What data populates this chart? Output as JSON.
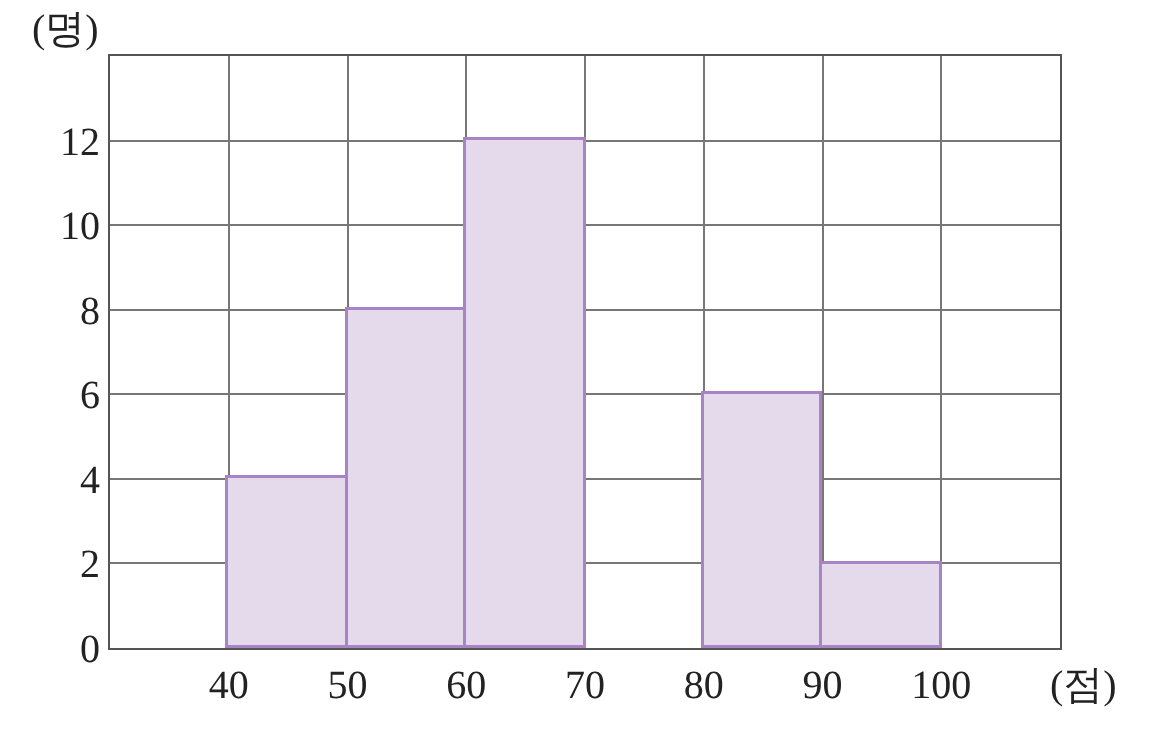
{
  "chart_data": {
    "type": "histogram",
    "xlabel": "(점)",
    "ylabel": "(명)",
    "bins": [
      40,
      50,
      60,
      70,
      80,
      90,
      100
    ],
    "values": [
      4,
      8,
      12,
      null,
      6,
      2
    ],
    "color": "#e4daec",
    "xlim": [
      30,
      110
    ],
    "xticks": [
      40,
      50,
      60,
      70,
      80,
      90,
      100
    ],
    "ylim": [
      0,
      14
    ],
    "yticks": [
      0,
      2,
      4,
      6,
      8,
      10,
      12
    ],
    "grid": true
  }
}
